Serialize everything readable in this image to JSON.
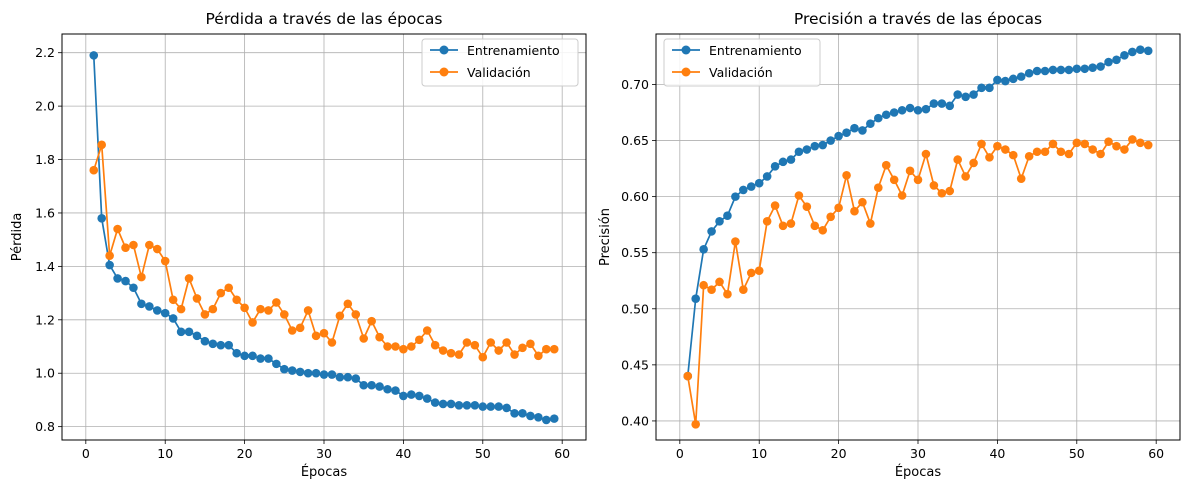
{
  "chart_data": [
    {
      "type": "line",
      "title": "Pérdida a través de las épocas",
      "xlabel": "Épocas",
      "ylabel": "Pérdida",
      "xlim": [
        -3,
        63
      ],
      "ylim": [
        0.75,
        2.27
      ],
      "xticks": [
        0,
        10,
        20,
        30,
        40,
        50,
        60
      ],
      "yticks": [
        0.8,
        1.0,
        1.2,
        1.4,
        1.6,
        1.8,
        2.0,
        2.2
      ],
      "grid": true,
      "legend_position": "top-right",
      "x": [
        1,
        2,
        3,
        4,
        5,
        6,
        7,
        8,
        9,
        10,
        11,
        12,
        13,
        14,
        15,
        16,
        17,
        18,
        19,
        20,
        21,
        22,
        23,
        24,
        25,
        26,
        27,
        28,
        29,
        30,
        31,
        32,
        33,
        34,
        35,
        36,
        37,
        38,
        39,
        40,
        41,
        42,
        43,
        44,
        45,
        46,
        47,
        48,
        49,
        50,
        51,
        52,
        53,
        54,
        55,
        56,
        57,
        58,
        59
      ],
      "series": [
        {
          "name": "Entrenamiento",
          "color": "#1f77b4",
          "values": [
            2.19,
            1.58,
            1.405,
            1.355,
            1.345,
            1.32,
            1.26,
            1.25,
            1.235,
            1.225,
            1.205,
            1.155,
            1.155,
            1.14,
            1.12,
            1.11,
            1.105,
            1.105,
            1.075,
            1.065,
            1.065,
            1.055,
            1.055,
            1.035,
            1.015,
            1.01,
            1.005,
            1.0,
            1.0,
            0.995,
            0.995,
            0.985,
            0.985,
            0.98,
            0.955,
            0.955,
            0.95,
            0.94,
            0.935,
            0.915,
            0.92,
            0.915,
            0.905,
            0.89,
            0.885,
            0.885,
            0.88,
            0.88,
            0.88,
            0.875,
            0.875,
            0.875,
            0.87,
            0.85,
            0.85,
            0.84,
            0.835,
            0.825,
            0.83
          ]
        },
        {
          "name": "Validación",
          "color": "#ff7f0e",
          "values": [
            1.76,
            1.855,
            1.44,
            1.54,
            1.47,
            1.48,
            1.36,
            1.48,
            1.465,
            1.42,
            1.275,
            1.24,
            1.355,
            1.28,
            1.22,
            1.24,
            1.3,
            1.32,
            1.275,
            1.245,
            1.19,
            1.24,
            1.235,
            1.265,
            1.22,
            1.16,
            1.17,
            1.235,
            1.14,
            1.15,
            1.115,
            1.215,
            1.26,
            1.22,
            1.13,
            1.195,
            1.135,
            1.1,
            1.1,
            1.09,
            1.1,
            1.125,
            1.16,
            1.105,
            1.085,
            1.075,
            1.07,
            1.115,
            1.105,
            1.06,
            1.115,
            1.085,
            1.115,
            1.07,
            1.095,
            1.11,
            1.065,
            1.09,
            1.09
          ]
        }
      ]
    },
    {
      "type": "line",
      "title": "Precisión a través de las épocas",
      "xlabel": "Épocas",
      "ylabel": "Precisión",
      "xlim": [
        -3,
        63
      ],
      "ylim": [
        0.383,
        0.745
      ],
      "xticks": [
        0,
        10,
        20,
        30,
        40,
        50,
        60
      ],
      "yticks": [
        0.4,
        0.45,
        0.5,
        0.55,
        0.6,
        0.65,
        0.7
      ],
      "ytick_labels": [
        "0.40",
        "0.45",
        "0.50",
        "0.55",
        "0.60",
        "0.65",
        "0.70"
      ],
      "grid": true,
      "legend_position": "top-left",
      "x": [
        1,
        2,
        3,
        4,
        5,
        6,
        7,
        8,
        9,
        10,
        11,
        12,
        13,
        14,
        15,
        16,
        17,
        18,
        19,
        20,
        21,
        22,
        23,
        24,
        25,
        26,
        27,
        28,
        29,
        30,
        31,
        32,
        33,
        34,
        35,
        36,
        37,
        38,
        39,
        40,
        41,
        42,
        43,
        44,
        45,
        46,
        47,
        48,
        49,
        50,
        51,
        52,
        53,
        54,
        55,
        56,
        57,
        58,
        59
      ],
      "series": [
        {
          "name": "Entrenamiento",
          "color": "#1f77b4",
          "values": [
            0.44,
            0.509,
            0.553,
            0.569,
            0.578,
            0.583,
            0.6,
            0.606,
            0.609,
            0.612,
            0.618,
            0.627,
            0.631,
            0.633,
            0.64,
            0.642,
            0.645,
            0.646,
            0.65,
            0.654,
            0.657,
            0.661,
            0.659,
            0.665,
            0.67,
            0.673,
            0.675,
            0.677,
            0.679,
            0.677,
            0.678,
            0.683,
            0.683,
            0.681,
            0.691,
            0.689,
            0.691,
            0.697,
            0.697,
            0.704,
            0.703,
            0.705,
            0.707,
            0.71,
            0.712,
            0.712,
            0.713,
            0.713,
            0.713,
            0.714,
            0.714,
            0.715,
            0.716,
            0.72,
            0.722,
            0.726,
            0.729,
            0.731,
            0.73
          ]
        },
        {
          "name": "Validación",
          "color": "#ff7f0e",
          "values": [
            0.44,
            0.397,
            0.521,
            0.517,
            0.524,
            0.513,
            0.56,
            0.517,
            0.532,
            0.534,
            0.578,
            0.592,
            0.574,
            0.576,
            0.601,
            0.591,
            0.574,
            0.57,
            0.582,
            0.59,
            0.619,
            0.587,
            0.595,
            0.576,
            0.608,
            0.628,
            0.615,
            0.601,
            0.623,
            0.615,
            0.638,
            0.61,
            0.603,
            0.605,
            0.633,
            0.618,
            0.63,
            0.647,
            0.635,
            0.645,
            0.642,
            0.637,
            0.616,
            0.636,
            0.64,
            0.64,
            0.647,
            0.64,
            0.638,
            0.648,
            0.647,
            0.642,
            0.638,
            0.649,
            0.645,
            0.642,
            0.651,
            0.648,
            0.646
          ]
        }
      ]
    }
  ]
}
